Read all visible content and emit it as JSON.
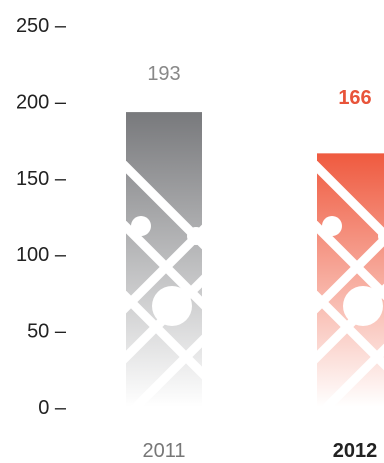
{
  "chart_data": {
    "type": "bar",
    "categories": [
      "2011",
      "2012"
    ],
    "values": [
      193,
      166
    ],
    "value_labels": [
      "193",
      "166"
    ],
    "highlighted_category": "2012",
    "ylim": [
      0,
      250
    ],
    "yticks": [
      0,
      50,
      100,
      150,
      200,
      250
    ],
    "ytick_labels": [
      "0 –",
      "50 –",
      "100 –",
      "150 –",
      "200 –",
      "250 –"
    ],
    "grid": false,
    "legend": "none",
    "title": "",
    "xlabel": "",
    "ylabel": ""
  },
  "colors": {
    "bar_default_top": "#78797c",
    "bar_default_bottom": "#ffffff",
    "bar_highlight_top": "#ef5a3f",
    "bar_highlight_bottom": "#ffffff",
    "label_default": "#888888",
    "label_highlight": "#e8543a",
    "category_default": "#777777",
    "category_highlight": "#222222",
    "axis_text": "#222222"
  }
}
